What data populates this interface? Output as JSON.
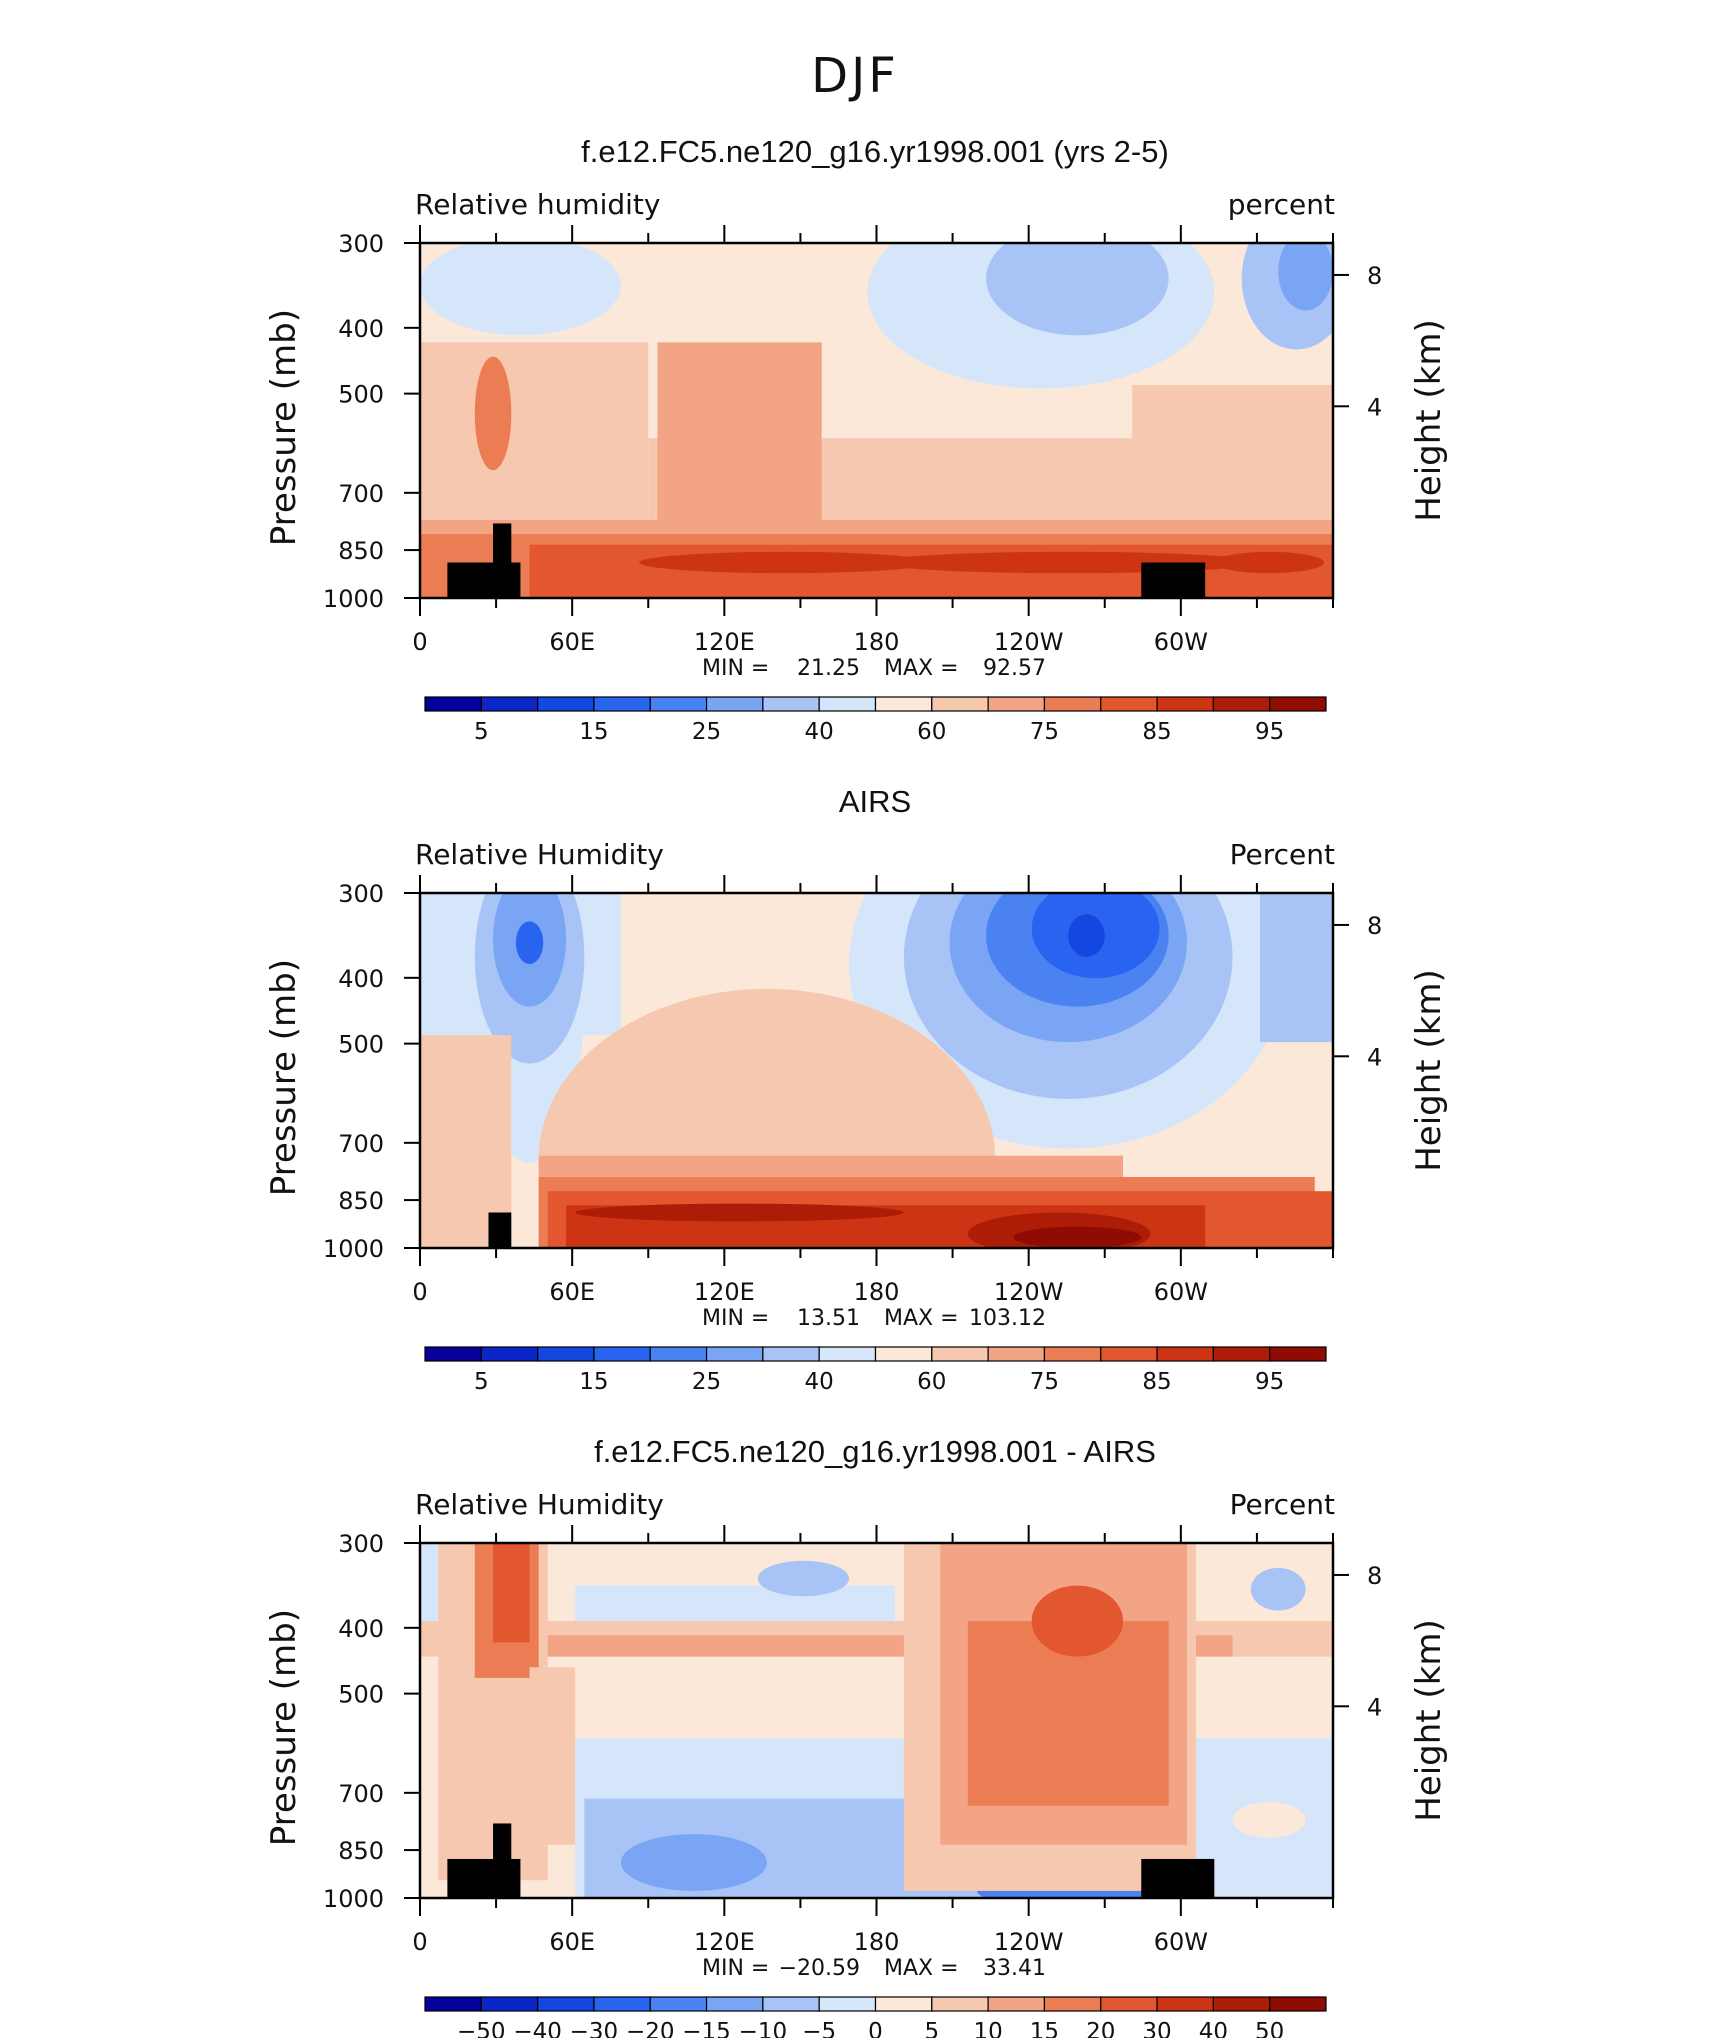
{
  "page_title": "DJF",
  "chart_data": [
    {
      "type": "heatmap",
      "title": "f.e12.FC5.ne120_g16.yr1998.001 (yrs 2-5)",
      "left_label": "Relative  humidity",
      "right_label": "percent",
      "ylabel": "Pressure  (mb)",
      "ylabel_right": "Height  (km)",
      "xticks": [
        "0",
        "60E",
        "120E",
        "180",
        "120W",
        "60W"
      ],
      "yticks": [
        "300",
        "400",
        "500",
        "700",
        "850",
        "1000"
      ],
      "yticks_right": [
        "8",
        "4"
      ],
      "stats": {
        "min_label": "MIN =",
        "min": "21.25",
        "max_label": "MAX =",
        "max": "92.57"
      },
      "colorbar": {
        "colors": [
          "#08009a",
          "#0b26c8",
          "#1446e0",
          "#2864f0",
          "#4a82f2",
          "#7aa4f4",
          "#a8c4f6",
          "#d6e6fa",
          "#fbe8d8",
          "#f7c8b0",
          "#f2a484",
          "#ec7c54",
          "#e25630",
          "#cc3414",
          "#ac1c06",
          "#8e0c04"
        ],
        "labels": [
          "5",
          "15",
          "25",
          "40",
          "60",
          "75",
          "85",
          "95"
        ],
        "label_boundaries": [
          1,
          3,
          5,
          7,
          9,
          11,
          13,
          15
        ]
      }
    },
    {
      "type": "heatmap",
      "title": "AIRS",
      "left_label": "Relative  Humidity",
      "right_label": "Percent",
      "ylabel": "Pressure  (mb)",
      "ylabel_right": "Height  (km)",
      "xticks": [
        "0",
        "60E",
        "120E",
        "180",
        "120W",
        "60W"
      ],
      "yticks": [
        "300",
        "400",
        "500",
        "700",
        "850",
        "1000"
      ],
      "yticks_right": [
        "8",
        "4"
      ],
      "stats": {
        "min_label": "MIN =",
        "min": "13.51",
        "max_label": "MAX =",
        "max": "103.12"
      },
      "colorbar": {
        "colors": [
          "#08009a",
          "#0b26c8",
          "#1446e0",
          "#2864f0",
          "#4a82f2",
          "#7aa4f4",
          "#a8c4f6",
          "#d6e6fa",
          "#fbe8d8",
          "#f7c8b0",
          "#f2a484",
          "#ec7c54",
          "#e25630",
          "#cc3414",
          "#ac1c06",
          "#8e0c04"
        ],
        "labels": [
          "5",
          "15",
          "25",
          "40",
          "60",
          "75",
          "85",
          "95"
        ],
        "label_boundaries": [
          1,
          3,
          5,
          7,
          9,
          11,
          13,
          15
        ]
      }
    },
    {
      "type": "heatmap",
      "title": "f.e12.FC5.ne120_g16.yr1998.001 - AIRS",
      "left_label": "Relative  Humidity",
      "right_label": "Percent",
      "ylabel": "Pressure  (mb)",
      "ylabel_right": "Height  (km)",
      "xticks": [
        "0",
        "60E",
        "120E",
        "180",
        "120W",
        "60W"
      ],
      "yticks": [
        "300",
        "400",
        "500",
        "700",
        "850",
        "1000"
      ],
      "yticks_right": [
        "8",
        "4"
      ],
      "stats": {
        "min_label": "MIN =",
        "min": "−20.59",
        "max_label": "MAX =",
        "max": "33.41"
      },
      "colorbar": {
        "colors": [
          "#08009a",
          "#0b26c8",
          "#1446e0",
          "#2864f0",
          "#4a82f2",
          "#7aa4f4",
          "#a8c4f6",
          "#d6e6fa",
          "#fbe8d8",
          "#f7c8b0",
          "#f2a484",
          "#ec7c54",
          "#e25630",
          "#cc3414",
          "#ac1c06",
          "#8e0c04"
        ],
        "labels": [
          "−50",
          "−40",
          "−30",
          "−20",
          "−15",
          "−10",
          "−5",
          "0",
          "5",
          "10",
          "15",
          "20",
          "30",
          "40",
          "50"
        ],
        "label_boundaries": [
          1,
          2,
          3,
          4,
          5,
          6,
          7,
          8,
          9,
          10,
          11,
          12,
          13,
          14,
          15
        ]
      }
    }
  ]
}
